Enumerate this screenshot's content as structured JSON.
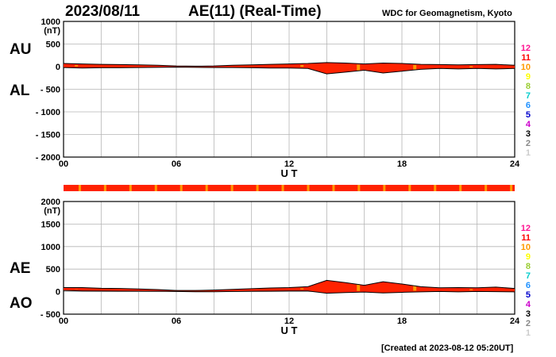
{
  "header": {
    "date": "2023/08/11",
    "title": "AE(11) (Real-Time)",
    "source": "WDC for Geomagnetism, Kyoto"
  },
  "footer": {
    "created": "[Created at 2023-08-12 05:20UT]"
  },
  "colors": {
    "fill": "#ff2200",
    "fill_alt": "#ff9900",
    "outline": "#000000",
    "grid": "#b4b4b4"
  },
  "legend_levels": [
    {
      "label": "12",
      "color": "#ff1493"
    },
    {
      "label": "11",
      "color": "#ff0000"
    },
    {
      "label": "10",
      "color": "#ff9900"
    },
    {
      "label": "9",
      "color": "#ffff00"
    },
    {
      "label": "8",
      "color": "#9acd32"
    },
    {
      "label": "7",
      "color": "#00cccc"
    },
    {
      "label": "6",
      "color": "#1e90ff"
    },
    {
      "label": "5",
      "color": "#0000cc"
    },
    {
      "label": "4",
      "color": "#cc00cc"
    },
    {
      "label": "3",
      "color": "#000000"
    },
    {
      "label": "2",
      "color": "#888888"
    },
    {
      "label": "1",
      "color": "#cccccc"
    }
  ],
  "chart_data": [
    {
      "type": "area",
      "panel": "AU/AL",
      "series_labels": [
        "AU",
        "AL"
      ],
      "unit": "(nT)",
      "xlabel": "U T",
      "xlim": [
        0,
        24
      ],
      "xticks": [
        "00",
        "06",
        "12",
        "18",
        "24"
      ],
      "ylim": [
        -2000,
        1000
      ],
      "yticks": [
        "1000",
        "500",
        "0",
        "- 500",
        "- 1000",
        "- 1500",
        "- 2000"
      ],
      "x": [
        0,
        1,
        2,
        3,
        4,
        5,
        6,
        7,
        8,
        9,
        10,
        11,
        12,
        13,
        14,
        15,
        16,
        17,
        18,
        19,
        20,
        21,
        22,
        23,
        24
      ],
      "series": [
        {
          "name": "AU",
          "values": [
            70,
            60,
            50,
            45,
            40,
            30,
            15,
            10,
            15,
            30,
            40,
            50,
            60,
            70,
            90,
            80,
            60,
            80,
            70,
            50,
            45,
            40,
            45,
            50,
            30
          ]
        },
        {
          "name": "AL",
          "values": [
            -20,
            -30,
            -25,
            -25,
            -20,
            -15,
            -10,
            -15,
            -20,
            -20,
            -25,
            -30,
            -30,
            -40,
            -160,
            -120,
            -80,
            -140,
            -100,
            -60,
            -40,
            -50,
            -40,
            -50,
            -40
          ]
        }
      ]
    },
    {
      "type": "area",
      "panel": "AE/AO",
      "series_labels": [
        "AE",
        "AO"
      ],
      "unit": "(nT)",
      "xlabel": "U T",
      "xlim": [
        0,
        24
      ],
      "xticks": [
        "00",
        "06",
        "12",
        "18",
        "24"
      ],
      "ylim": [
        -500,
        2000
      ],
      "yticks": [
        "2000",
        "1500",
        "1000",
        "500",
        "0",
        "- 500"
      ],
      "x": [
        0,
        1,
        2,
        3,
        4,
        5,
        6,
        7,
        8,
        9,
        10,
        11,
        12,
        13,
        14,
        15,
        16,
        17,
        18,
        19,
        20,
        21,
        22,
        23,
        24
      ],
      "series": [
        {
          "name": "AE",
          "values": [
            90,
            90,
            75,
            70,
            60,
            45,
            25,
            25,
            35,
            50,
            65,
            80,
            90,
            110,
            250,
            200,
            140,
            220,
            170,
            110,
            85,
            90,
            85,
            100,
            70
          ]
        },
        {
          "name": "AO",
          "values": [
            25,
            15,
            12,
            10,
            10,
            8,
            3,
            -2,
            -3,
            5,
            8,
            10,
            15,
            15,
            -35,
            -20,
            -10,
            -30,
            -15,
            -5,
            3,
            -5,
            3,
            0,
            -5
          ]
        }
      ]
    }
  ]
}
